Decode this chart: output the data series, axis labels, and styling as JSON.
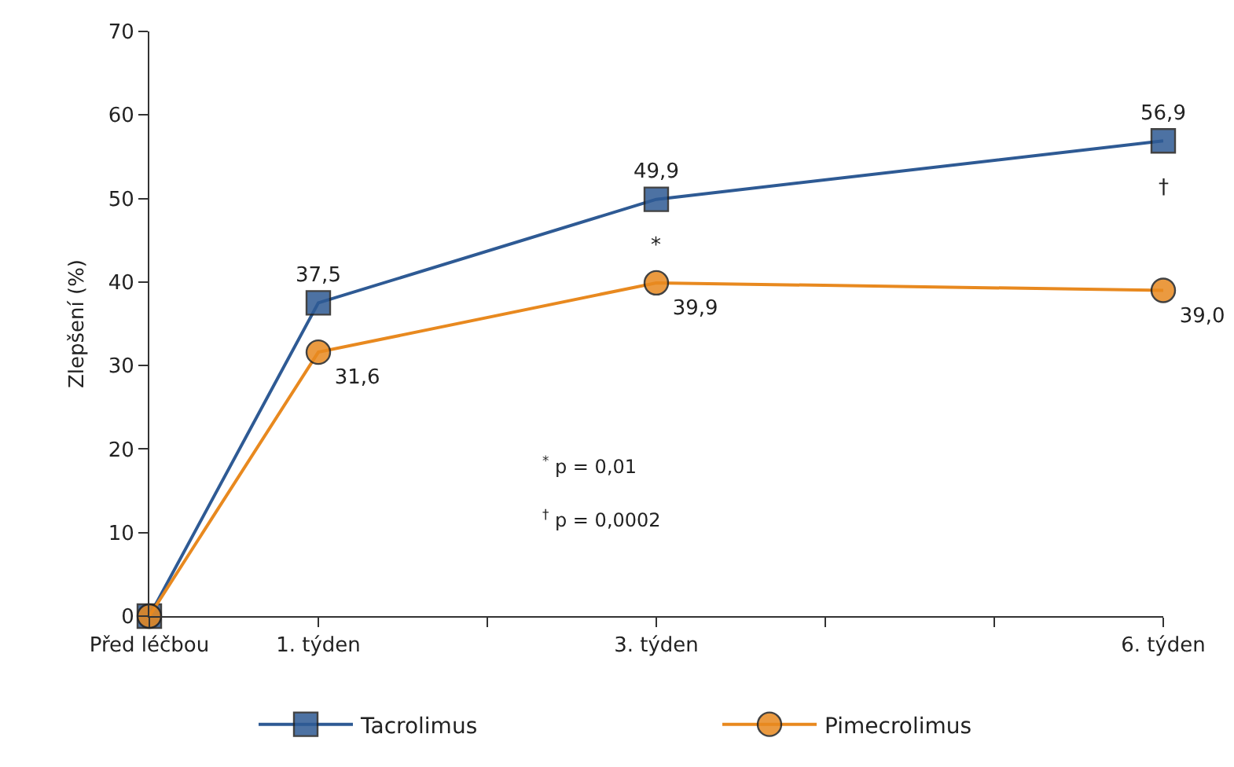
{
  "chart_data": {
    "type": "line",
    "ylabel": "Zlepšení (%)",
    "x": [
      0,
      1,
      3,
      6
    ],
    "xlim": [
      0,
      6
    ],
    "xticks": [
      {
        "value": 0,
        "label": "Před léčbou"
      },
      {
        "value": 1,
        "label": "1. týden"
      },
      {
        "value": 2,
        "label": null
      },
      {
        "value": 3,
        "label": "3. týden"
      },
      {
        "value": 4,
        "label": null
      },
      {
        "value": 5,
        "label": null
      },
      {
        "value": 6,
        "label": "6. týden"
      }
    ],
    "ylim": [
      0,
      70
    ],
    "yticks": [
      0,
      10,
      20,
      30,
      40,
      50,
      60,
      70
    ],
    "series": [
      {
        "name": "Tacrolimus",
        "color": "#2e5a94",
        "marker": "square",
        "values": [
          0,
          37.5,
          49.9,
          56.9
        ],
        "value_labels": [
          null,
          "37,5",
          "49,9",
          "56,9"
        ]
      },
      {
        "name": "Pimecrolimus",
        "color": "#e8891f",
        "marker": "circle",
        "values": [
          0,
          31.6,
          39.9,
          39.0
        ],
        "value_labels": [
          null,
          "31,6",
          "39,9",
          "39,0"
        ]
      }
    ],
    "annotations": [
      {
        "text": "*",
        "x": 3,
        "y": 49.9
      },
      {
        "text": "†",
        "x": 6,
        "y": 56.9
      },
      "$^{*}$ p = 0,01",
      "$^{†}$ p = 0,0002"
    ],
    "legend": "bottom",
    "grid": false,
    "line_style": "solid"
  }
}
